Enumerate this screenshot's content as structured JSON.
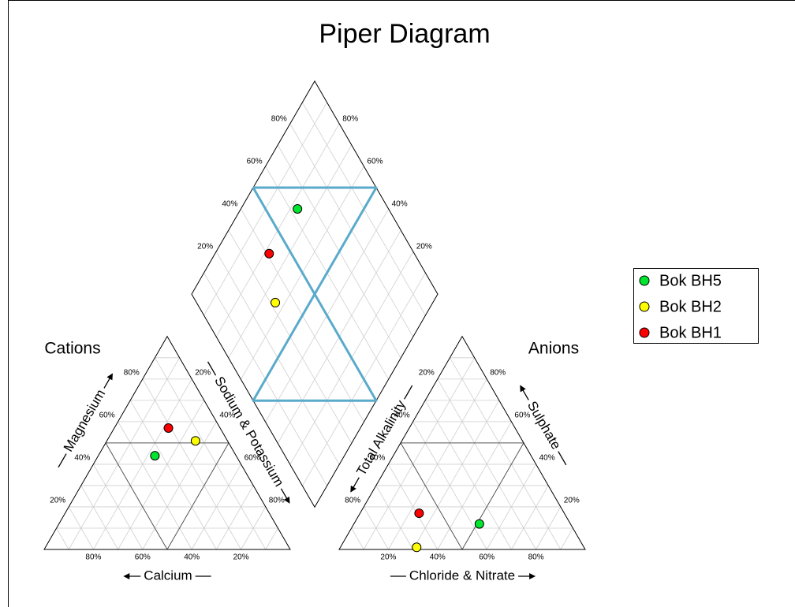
{
  "chart_data": {
    "type": "piper",
    "title": "Piper Diagram",
    "cations_label": "Cations",
    "anions_label": "Anions",
    "axis_labels": {
      "magnesium": "Magnesium",
      "calcium": "Calcium",
      "sodium_potassium": "Sodium & Potassium",
      "alkalinity": "Total Alkalinity",
      "sulphate": "Sulphate",
      "chloride_nitrate": "Chloride & Nitrate"
    },
    "ticks": [
      {
        "value": 20,
        "label": "20%"
      },
      {
        "value": 40,
        "label": "40%"
      },
      {
        "value": 60,
        "label": "60%"
      },
      {
        "value": 80,
        "label": "80%"
      }
    ],
    "series": [
      {
        "name": "Bok BH5",
        "color": "#00e62e",
        "ca": 33,
        "mg": 44,
        "na_k": 23,
        "hco3": 37,
        "cl": 51,
        "so4": 12
      },
      {
        "name": "Bok BH2",
        "color": "#ffff00",
        "ca": 13,
        "mg": 51,
        "na_k": 36,
        "hco3": 68,
        "cl": 31,
        "so4": 1
      },
      {
        "name": "Bok BH1",
        "color": "#ff0000",
        "ca": 21,
        "mg": 57,
        "na_k": 22,
        "hco3": 59,
        "cl": 24,
        "so4": 17
      }
    ]
  }
}
